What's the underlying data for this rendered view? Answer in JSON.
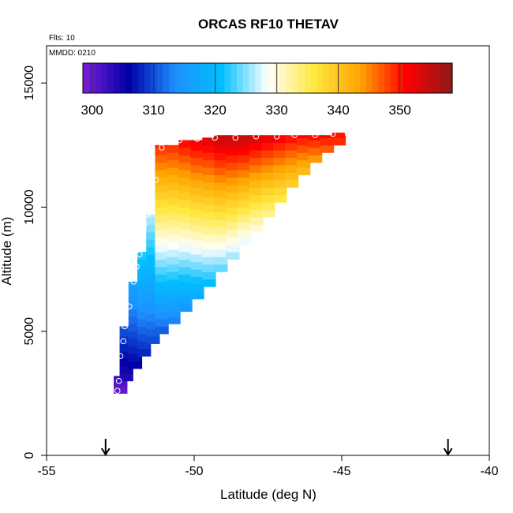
{
  "chart_data": {
    "type": "heatmap",
    "title": "ORCAS RF10 THETAV",
    "xlabel": "Latitude (deg N)",
    "ylabel": "Altitude (m)",
    "xlim": [
      -55,
      -40
    ],
    "ylim": [
      0,
      16500
    ],
    "x_ticks": [
      "-55",
      "-50",
      "-45",
      "-40"
    ],
    "y_ticks": [
      "0",
      "5000",
      "10000",
      "15000"
    ],
    "annotations": {
      "flights": "Flts: 10",
      "mmdd": "MMDD: 0210"
    },
    "colorbar": {
      "range": [
        298.5,
        358.5
      ],
      "ticks": [
        "300",
        "310",
        "320",
        "330",
        "340",
        "350"
      ],
      "colors": [
        "#7a1fd6",
        "#0000a8",
        "#1e90ff",
        "#00bfff",
        "#ffffff",
        "#ffe840",
        "#ffa500",
        "#ff0000",
        "#8b1a1a"
      ]
    },
    "arrows_lat": [
      -53,
      -41.4
    ],
    "cell_size": {
      "lat": 0.25,
      "alt": 300
    },
    "columns": [
      {
        "lat": -52.6,
        "bottom": 2500,
        "top": 3200,
        "theta_bottom": 300,
        "theta_top": 303
      },
      {
        "lat": -52.4,
        "bottom": 3000,
        "top": 5200,
        "theta_bottom": 304,
        "theta_top": 311
      },
      {
        "lat": -52.1,
        "bottom": 3500,
        "top": 7000,
        "theta_bottom": 306,
        "theta_top": 317
      },
      {
        "lat": -51.8,
        "bottom": 4000,
        "top": 8200,
        "theta_bottom": 308,
        "theta_top": 323
      },
      {
        "lat": -51.5,
        "bottom": 4500,
        "top": 9700,
        "theta_bottom": 310,
        "theta_top": 327
      },
      {
        "lat": -51.2,
        "bottom": 4900,
        "top": 12500,
        "theta_bottom": 311,
        "theta_top": 350
      },
      {
        "lat": -50.8,
        "bottom": 5300,
        "top": 12500,
        "theta_bottom": 313,
        "theta_top": 350
      },
      {
        "lat": -50.4,
        "bottom": 5800,
        "top": 12700,
        "theta_bottom": 315,
        "theta_top": 352
      },
      {
        "lat": -50.0,
        "bottom": 6300,
        "top": 12700,
        "theta_bottom": 318,
        "theta_top": 353
      },
      {
        "lat": -49.6,
        "bottom": 6800,
        "top": 12800,
        "theta_bottom": 321,
        "theta_top": 354
      },
      {
        "lat": -49.2,
        "bottom": 7400,
        "top": 12900,
        "theta_bottom": 324,
        "theta_top": 356
      },
      {
        "lat": -48.8,
        "bottom": 7900,
        "top": 12900,
        "theta_bottom": 326,
        "theta_top": 356
      },
      {
        "lat": -48.4,
        "bottom": 8500,
        "top": 12900,
        "theta_bottom": 328,
        "theta_top": 356
      },
      {
        "lat": -48.0,
        "bottom": 9000,
        "top": 12900,
        "theta_bottom": 330,
        "theta_top": 355
      },
      {
        "lat": -47.6,
        "bottom": 9600,
        "top": 12900,
        "theta_bottom": 333,
        "theta_top": 354
      },
      {
        "lat": -47.2,
        "bottom": 10200,
        "top": 12900,
        "theta_bottom": 336,
        "theta_top": 353
      },
      {
        "lat": -46.8,
        "bottom": 10800,
        "top": 12900,
        "theta_bottom": 339,
        "theta_top": 352
      },
      {
        "lat": -46.4,
        "bottom": 11300,
        "top": 12900,
        "theta_bottom": 341,
        "theta_top": 352
      },
      {
        "lat": -46.0,
        "bottom": 11800,
        "top": 12900,
        "theta_bottom": 344,
        "theta_top": 352
      },
      {
        "lat": -45.6,
        "bottom": 12200,
        "top": 12900,
        "theta_bottom": 347,
        "theta_top": 352
      },
      {
        "lat": -45.2,
        "bottom": 12500,
        "top": 13000,
        "theta_bottom": 349,
        "theta_top": 351
      }
    ],
    "flight_track": [
      {
        "lat": -52.6,
        "alt": 2600
      },
      {
        "lat": -52.55,
        "alt": 3000
      },
      {
        "lat": -52.5,
        "alt": 4000
      },
      {
        "lat": -52.4,
        "alt": 4600
      },
      {
        "lat": -52.35,
        "alt": 5200
      },
      {
        "lat": -52.2,
        "alt": 6000
      },
      {
        "lat": -52.05,
        "alt": 7000
      },
      {
        "lat": -51.95,
        "alt": 7600
      },
      {
        "lat": -51.85,
        "alt": 8100
      },
      {
        "lat": -51.7,
        "alt": 9300
      },
      {
        "lat": -51.6,
        "alt": 9700
      },
      {
        "lat": -51.45,
        "alt": 10400
      },
      {
        "lat": -51.3,
        "alt": 11100
      },
      {
        "lat": -51.1,
        "alt": 12400
      },
      {
        "lat": -50.5,
        "alt": 12700
      },
      {
        "lat": -49.9,
        "alt": 12750
      },
      {
        "lat": -49.3,
        "alt": 12800
      },
      {
        "lat": -48.6,
        "alt": 12800
      },
      {
        "lat": -47.9,
        "alt": 12850
      },
      {
        "lat": -47.2,
        "alt": 12850
      },
      {
        "lat": -46.6,
        "alt": 12900
      },
      {
        "lat": -45.9,
        "alt": 12900
      },
      {
        "lat": -45.3,
        "alt": 12950
      },
      {
        "lat": -44.8,
        "alt": 12950
      }
    ]
  }
}
